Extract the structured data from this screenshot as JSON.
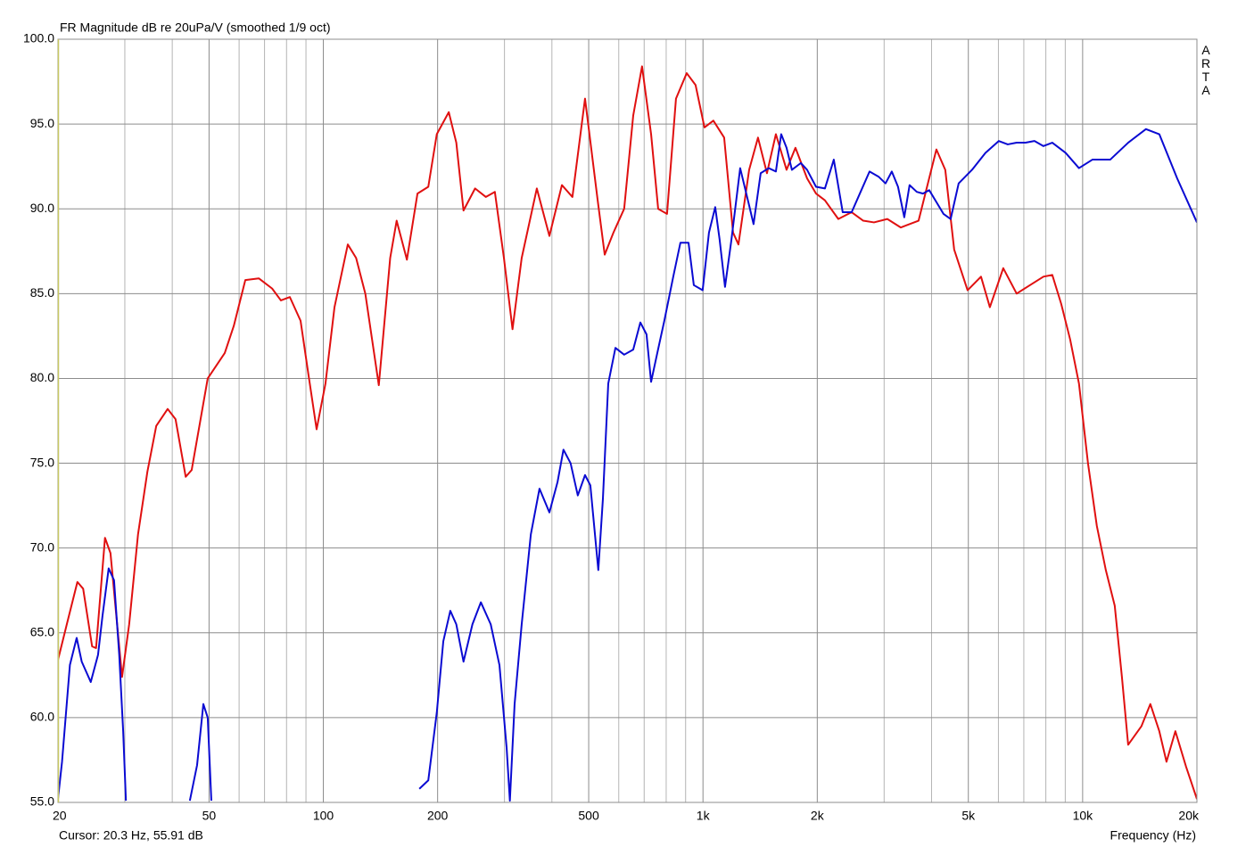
{
  "chart_data": {
    "type": "line",
    "title": "FR Magnitude dB re 20uPa/V (smoothed 1/9 oct)",
    "watermark": "ARTA",
    "xlabel": "Frequency (Hz)",
    "cursor_readout": "Cursor: 20.3 Hz, 55.91 dB",
    "xscale": "log",
    "grid": true,
    "xlim": [
      20,
      20000
    ],
    "ylim": [
      55,
      100
    ],
    "xticks": [
      20,
      50,
      100,
      200,
      500,
      {
        "value": 1000,
        "label": "1k"
      },
      {
        "value": 2000,
        "label": "2k"
      },
      {
        "value": 5000,
        "label": "5k"
      },
      {
        "value": 10000,
        "label": "10k"
      },
      {
        "value": 20000,
        "label": "20k"
      }
    ],
    "xminor_ticks": [
      30,
      40,
      60,
      70,
      80,
      90,
      300,
      400,
      600,
      700,
      800,
      900,
      3000,
      4000,
      6000,
      7000,
      8000,
      9000
    ],
    "yticks": [
      {
        "value": 55,
        "label": "55.0"
      },
      {
        "value": 60,
        "label": "60.0"
      },
      {
        "value": 65,
        "label": "65.0"
      },
      {
        "value": 70,
        "label": "70.0"
      },
      {
        "value": 75,
        "label": "75.0"
      },
      {
        "value": 80,
        "label": "80.0"
      },
      {
        "value": 85,
        "label": "85.0"
      },
      {
        "value": 90,
        "label": "90.0"
      },
      {
        "value": 95,
        "label": "95.0"
      },
      {
        "value": 100,
        "label": "100.0"
      }
    ],
    "series": [
      {
        "color": "#e01010",
        "x": [
          20,
          21.1,
          22.5,
          23.3,
          24.6,
          25.2,
          26.6,
          27.5,
          29.5,
          30.8,
          32.5,
          34.4,
          36.3,
          38.9,
          40.8,
          43.4,
          45,
          49.6,
          55,
          58.1,
          62.3,
          67.6,
          73.3,
          77.3,
          81.6,
          87.1,
          91.4,
          96,
          101.3,
          107,
          116,
          122,
          129,
          140,
          150,
          156,
          166,
          177,
          189,
          199,
          214,
          224,
          234,
          251,
          268,
          283,
          299,
          315,
          333,
          365,
          394,
          425,
          453,
          489,
          528,
          551,
          581,
          620,
          655,
          691,
          730,
          762,
          804,
          849,
          906,
          956,
          1009,
          1065,
          1137,
          1200,
          1240,
          1323,
          1396,
          1474,
          1556,
          1660,
          1752,
          1880,
          1985,
          2095,
          2272,
          2464,
          2643,
          2821,
          3059,
          3318,
          3697,
          4119,
          4347,
          4588,
          4977,
          5399,
          5697,
          6179,
          6702,
          7267,
          7884,
          8320,
          8780,
          9270,
          9780,
          10330,
          10900,
          11510,
          12150,
          12690,
          13180,
          14290,
          15080,
          15920,
          16630,
          17550,
          18730,
          20000
        ],
        "values": [
          63.4,
          65.5,
          68.0,
          67.6,
          64.2,
          64.1,
          70.6,
          69.7,
          62.4,
          65.5,
          70.8,
          74.5,
          77.2,
          78.2,
          77.6,
          74.2,
          74.6,
          80.0,
          81.5,
          83.1,
          85.8,
          85.9,
          85.3,
          84.6,
          84.8,
          83.4,
          80.2,
          77.0,
          79.7,
          84.2,
          87.9,
          87.1,
          85.0,
          79.6,
          87.1,
          89.3,
          87.0,
          90.9,
          91.3,
          94.4,
          95.7,
          93.9,
          89.9,
          91.2,
          90.7,
          91.0,
          87.1,
          82.9,
          87.1,
          91.2,
          88.4,
          91.4,
          90.7,
          96.5,
          90.5,
          87.3,
          88.6,
          90.0,
          95.5,
          98.4,
          94.4,
          90.0,
          89.7,
          96.5,
          98.0,
          97.3,
          94.8,
          95.2,
          94.2,
          88.6,
          87.9,
          92.3,
          94.2,
          92.1,
          94.4,
          92.3,
          93.6,
          91.8,
          90.9,
          90.5,
          89.4,
          89.8,
          89.3,
          89.2,
          89.4,
          88.9,
          89.3,
          93.5,
          92.3,
          87.6,
          85.2,
          86.0,
          84.2,
          86.5,
          85.0,
          85.5,
          86.0,
          86.1,
          84.4,
          82.3,
          79.7,
          75.0,
          71.3,
          68.7,
          66.6,
          62.4,
          58.4,
          59.5,
          60.8,
          59.2,
          57.4,
          59.2,
          57.1,
          55.2
        ]
      },
      {
        "color": "#0a0ad2",
        "x": [
          20,
          20.5,
          21.5,
          22.4,
          23.1,
          24.4,
          25.5,
          26.2,
          27.2,
          28.1,
          29.0,
          29.7,
          30.2,
          null,
          44.5,
          46.5,
          48.3,
          49.6,
          50.7,
          null,
          179,
          189,
          199,
          207,
          216,
          224,
          234,
          247,
          260,
          276,
          291,
          304,
          310,
          319,
          333,
          352,
          371,
          394,
          414,
          429,
          448,
          468,
          489,
          505,
          530,
          545,
          563,
          588,
          620,
          655,
          684,
          710,
          730,
          758,
          791,
          835,
          872,
          916,
          946,
          998,
          1037,
          1077,
          1106,
          1143,
          1187,
          1253,
          1323,
          1359,
          1419,
          1490,
          1556,
          1607,
          1660,
          1715,
          1810,
          1880,
          1985,
          2095,
          2211,
          2334,
          2464,
          2601,
          2746,
          2899,
          3026,
          3143,
          3264,
          3390,
          3501,
          3657,
          3797,
          3944,
          4119,
          4301,
          4491,
          4715,
          5113,
          5546,
          6015,
          6350,
          6702,
          7073,
          7467,
          7884,
          8320,
          9020,
          9780,
          10610,
          11820,
          13180,
          14680,
          15920,
          17740,
          20000
        ],
        "values": [
          55.2,
          57.4,
          63.1,
          64.7,
          63.3,
          62.1,
          63.7,
          66.0,
          68.8,
          68.1,
          63.7,
          59.2,
          55.1,
          null,
          55.1,
          57.2,
          60.8,
          60.0,
          55.1,
          null,
          55.8,
          56.3,
          60.3,
          64.5,
          66.3,
          65.5,
          63.3,
          65.5,
          66.8,
          65.5,
          63.1,
          58.2,
          55.1,
          60.8,
          65.5,
          70.8,
          73.5,
          72.1,
          73.9,
          75.8,
          75.0,
          73.1,
          74.3,
          73.7,
          68.7,
          72.9,
          79.7,
          81.8,
          81.4,
          81.7,
          83.3,
          82.6,
          79.8,
          81.5,
          83.4,
          86.0,
          88.0,
          88.0,
          85.5,
          85.2,
          88.6,
          90.1,
          88.2,
          85.4,
          88.1,
          92.4,
          90.2,
          89.1,
          92.1,
          92.4,
          92.2,
          94.4,
          93.6,
          92.3,
          92.7,
          92.3,
          91.3,
          91.2,
          92.9,
          89.8,
          89.8,
          91.0,
          92.2,
          91.9,
          91.5,
          92.2,
          91.3,
          89.5,
          91.4,
          91.0,
          90.9,
          91.1,
          90.4,
          89.7,
          89.4,
          91.5,
          92.3,
          93.3,
          94.0,
          93.8,
          93.9,
          93.9,
          94.0,
          93.7,
          93.9,
          93.3,
          92.4,
          92.9,
          92.9,
          93.9,
          94.7,
          94.4,
          91.8,
          89.2
        ]
      }
    ]
  }
}
